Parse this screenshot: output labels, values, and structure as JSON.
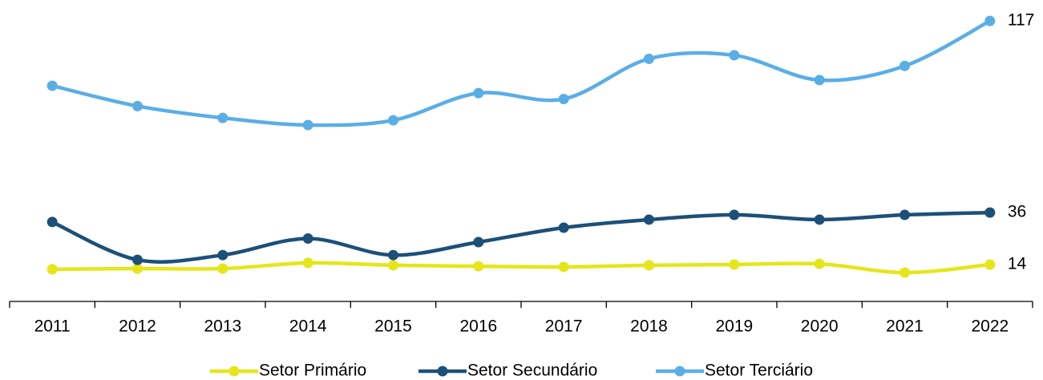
{
  "chart_data": {
    "type": "line",
    "categories": [
      "2011",
      "2012",
      "2013",
      "2014",
      "2015",
      "2016",
      "2017",
      "2018",
      "2019",
      "2020",
      "2021",
      "2022"
    ],
    "series": [
      {
        "name": "Setor Primário",
        "color": "#e5e619",
        "values": [
          12,
          12.3,
          12.3,
          14.7,
          13.7,
          13.3,
          13,
          13.7,
          14,
          14.3,
          10.6,
          14
        ]
      },
      {
        "name": "Setor Secundário",
        "color": "#1c5079",
        "values": [
          32,
          16,
          18,
          25,
          18,
          23.5,
          29.6,
          33,
          35,
          33,
          35,
          36
        ]
      },
      {
        "name": "Setor Terciário",
        "color": "#5aaee6",
        "values": [
          89.6,
          81,
          76,
          73,
          75,
          86.5,
          84,
          101,
          102.5,
          92,
          98,
          117
        ]
      }
    ],
    "ylim": [
      0,
      120
    ],
    "end_labels": true,
    "smooth": true,
    "legend": "bottom"
  }
}
